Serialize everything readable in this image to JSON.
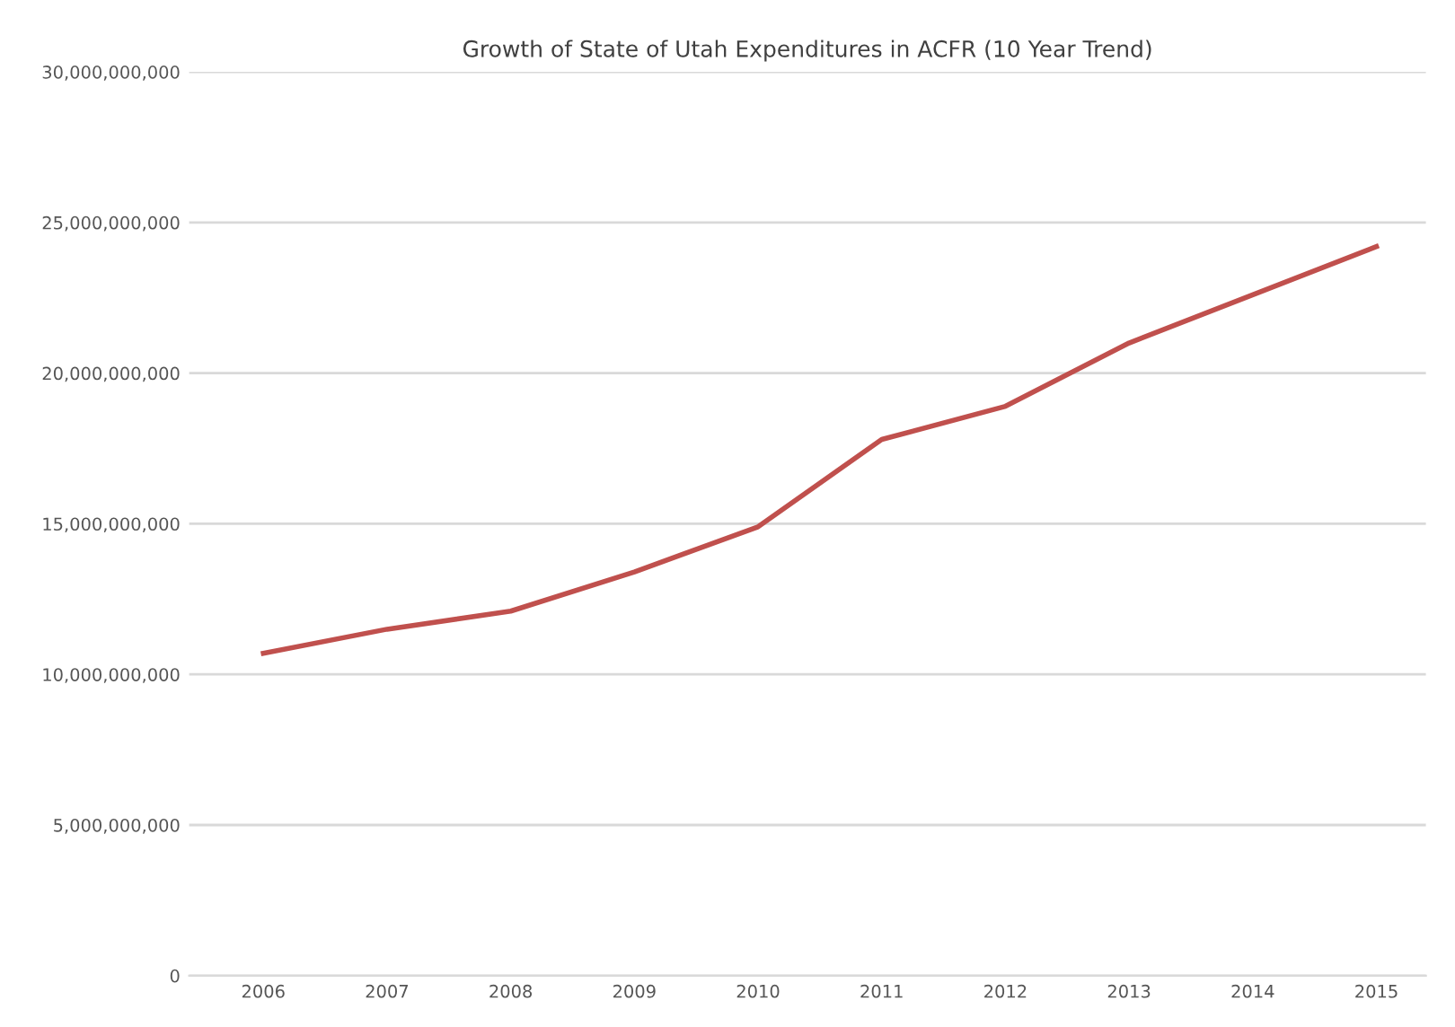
{
  "chart_data": {
    "type": "line",
    "title": "Growth of State of Utah Expenditures in ACFR (10 Year Trend)",
    "categories": [
      "2006",
      "2007",
      "2008",
      "2009",
      "2010",
      "2011",
      "2012",
      "2013",
      "2014",
      "2015"
    ],
    "series": [
      {
        "color": "#c0504d",
        "values": [
          10700000000,
          11500000000,
          12100000000,
          13400000000,
          14900000000,
          17800000000,
          18900000000,
          21000000000,
          22600000000,
          24200000000
        ]
      }
    ],
    "ylim": [
      0,
      30000000000
    ],
    "yticks": [
      0,
      {
        "value": 5000000000,
        "label": "5,000,000,000"
      },
      {
        "value": 10000000000,
        "label": "10,000,000,000"
      },
      {
        "value": 15000000000,
        "label": "15,000,000,000"
      },
      {
        "value": 20000000000,
        "label": "20,000,000,000"
      },
      {
        "value": 25000000000,
        "label": "25,000,000,000"
      },
      {
        "value": 30000000000,
        "label": "30,000,000,000"
      }
    ],
    "grid": "y",
    "marker": "none",
    "line_style": "solid"
  }
}
